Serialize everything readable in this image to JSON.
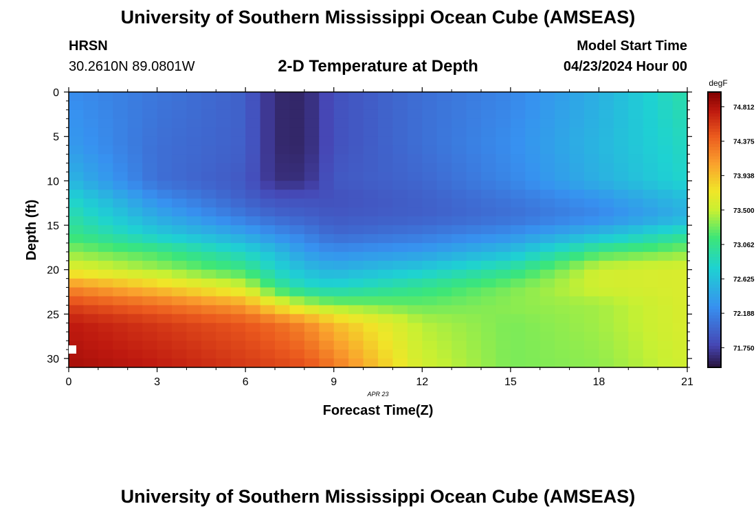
{
  "header": {
    "title": "University of Southern Mississippi Ocean Cube (AMSEAS)",
    "station": "HRSN",
    "coords": "30.2610N  89.0801W",
    "subtitle": "2-D Temperature at Depth",
    "model_start_label": "Model Start Time",
    "model_start_value": "04/23/2024 Hour 00"
  },
  "footer": {
    "title": "University of Southern Mississippi Ocean Cube (AMSEAS)"
  },
  "chart_data": {
    "type": "heatmap",
    "title": "2-D Temperature at Depth",
    "xlabel": "Forecast Time(Z)",
    "ylabel": "Depth (ft)",
    "date_label": "APR 23",
    "x_ticks": [
      0,
      3,
      6,
      9,
      12,
      15,
      18,
      21
    ],
    "y_ticks": [
      0,
      5,
      10,
      15,
      20,
      25,
      30
    ],
    "xlim": [
      0,
      21
    ],
    "ylim": [
      0,
      31
    ],
    "colorbar": {
      "unit": "degF",
      "ticks": [
        "74.812",
        "74.375",
        "73.938",
        "73.500",
        "73.062",
        "72.625",
        "72.188",
        "71.750"
      ],
      "min": 71.5,
      "max": 75.0
    },
    "grid": {
      "times": [
        0,
        3,
        6,
        7,
        8,
        9,
        12,
        15,
        18,
        21
      ],
      "depths": [
        0,
        6,
        10,
        12,
        14,
        16,
        18,
        20,
        22,
        24,
        26,
        31
      ],
      "values": [
        [
          72.25,
          72.1,
          71.95,
          71.62,
          71.6,
          71.85,
          72.05,
          72.2,
          72.5,
          72.95
        ],
        [
          72.35,
          72.05,
          71.95,
          71.62,
          71.6,
          71.85,
          72.05,
          72.25,
          72.55,
          72.85
        ],
        [
          72.55,
          72.05,
          71.9,
          71.65,
          71.65,
          71.9,
          72.0,
          72.2,
          72.5,
          72.8
        ],
        [
          72.8,
          72.25,
          71.95,
          71.85,
          71.85,
          71.85,
          71.95,
          72.1,
          72.3,
          72.6
        ],
        [
          72.95,
          72.45,
          72.1,
          72.0,
          71.95,
          71.9,
          71.95,
          72.05,
          72.2,
          72.5
        ],
        [
          73.1,
          72.7,
          72.4,
          72.25,
          72.15,
          72.0,
          72.1,
          72.25,
          72.55,
          72.95
        ],
        [
          73.35,
          73.15,
          72.8,
          72.6,
          72.35,
          72.25,
          72.35,
          72.6,
          73.15,
          73.35
        ],
        [
          73.65,
          73.4,
          73.1,
          72.8,
          72.6,
          72.5,
          72.7,
          73.0,
          73.55,
          73.6
        ],
        [
          74.2,
          73.9,
          73.55,
          73.1,
          72.85,
          72.8,
          73.05,
          73.3,
          73.55,
          73.6
        ],
        [
          74.55,
          74.35,
          74.1,
          73.75,
          73.5,
          73.35,
          73.25,
          73.35,
          73.4,
          73.6
        ],
        [
          74.75,
          74.6,
          74.45,
          74.35,
          74.2,
          73.95,
          73.45,
          73.3,
          73.4,
          73.6
        ],
        [
          74.85,
          74.75,
          74.6,
          74.55,
          74.5,
          74.3,
          73.55,
          73.3,
          73.35,
          73.55
        ]
      ]
    }
  }
}
